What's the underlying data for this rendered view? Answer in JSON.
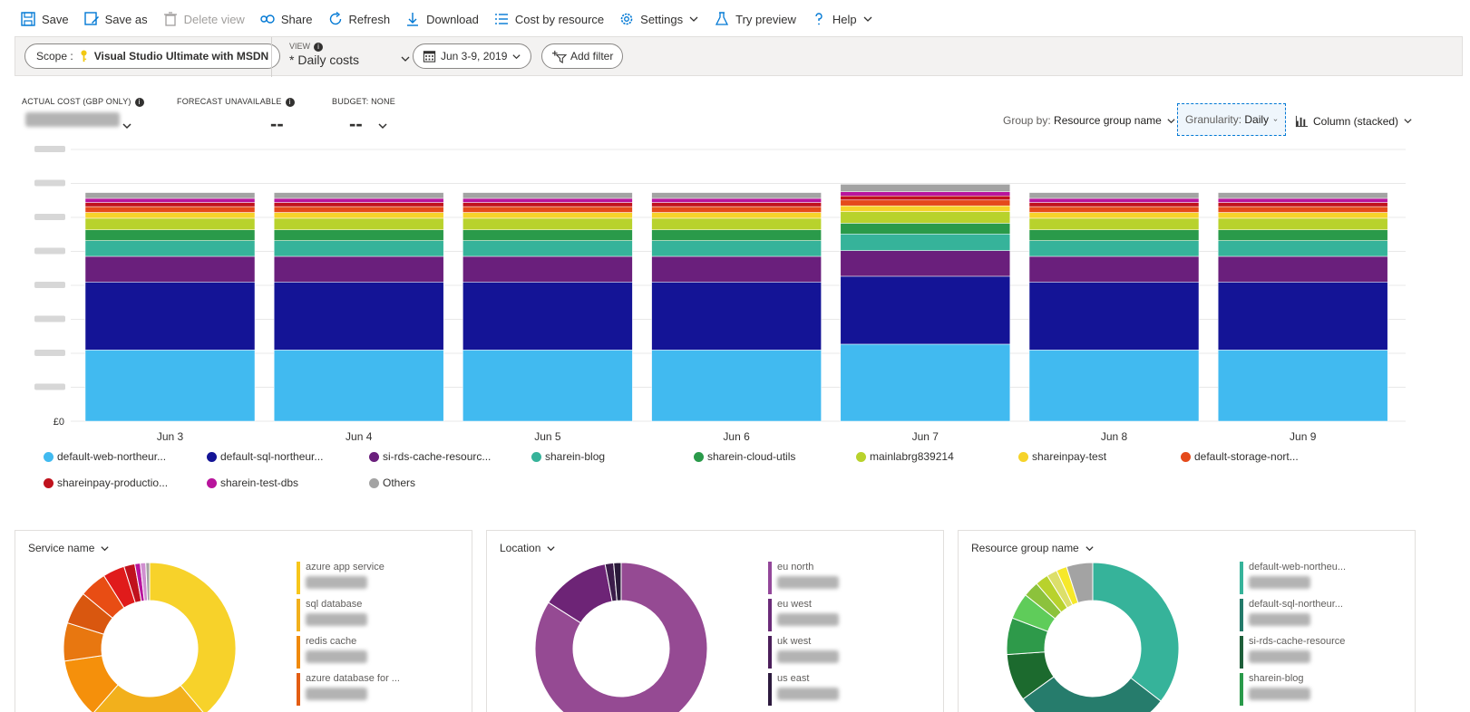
{
  "toolbar": {
    "save": "Save",
    "save_as": "Save as",
    "delete_view": "Delete view",
    "share": "Share",
    "refresh": "Refresh",
    "download": "Download",
    "cost_by_resource": "Cost by resource",
    "settings": "Settings",
    "try_preview": "Try preview",
    "help": "Help"
  },
  "filters": {
    "scope_label": "Scope :",
    "scope_value": "Visual Studio Ultimate with MSDN",
    "view_label": "VIEW",
    "view_value": "* Daily costs",
    "date_range": "Jun 3-9, 2019",
    "add_filter": "Add filter"
  },
  "kpis": {
    "actual_cost_label": "ACTUAL COST (GBP ONLY)",
    "forecast_label": "FORECAST UNAVAILABLE",
    "forecast_value": "--",
    "budget_label": "BUDGET: NONE",
    "budget_value": "--"
  },
  "controls": {
    "group_by_label": "Group by:",
    "group_by_value": "Resource group name",
    "granularity_label": "Granularity:",
    "granularity_value": "Daily",
    "chart_type": "Column (stacked)"
  },
  "colors": {
    "default-web-northeur": "#41baf0",
    "default-sql-northeur": "#141496",
    "si-rds-cache-resource": "#6a1f7c",
    "sharein-blog": "#36b39a",
    "sharein-cloud-utils": "#2a9a4a",
    "mainlabrg839214": "#b8d22c",
    "shareinpay-test": "#f6d32a",
    "default-storage-nort": "#e54a1b",
    "shareinpay-production": "#c0121d",
    "sharein-test-dbs": "#b8149c",
    "Others": "#a3a3a3"
  },
  "chart_data": {
    "type": "bar",
    "stacked": true,
    "categories": [
      "Jun 3",
      "Jun 4",
      "Jun 5",
      "Jun 6",
      "Jun 7",
      "Jun 8",
      "Jun 9"
    ],
    "y_tick_labels": [
      "£0"
    ],
    "ylim": [
      0,
      16.4
    ],
    "grid": true,
    "legend_placement": "bottom",
    "series": [
      {
        "name": "default-web-northeur...",
        "values": [
          4.3,
          4.3,
          4.3,
          4.3,
          4.65,
          4.3,
          4.3
        ]
      },
      {
        "name": "default-sql-northeur...",
        "values": [
          4.1,
          4.1,
          4.1,
          4.1,
          4.1,
          4.1,
          4.1
        ]
      },
      {
        "name": "si-rds-cache-resourc...",
        "values": [
          1.55,
          1.55,
          1.55,
          1.55,
          1.55,
          1.55,
          1.55
        ]
      },
      {
        "name": "sharein-blog",
        "values": [
          0.95,
          0.95,
          0.95,
          0.95,
          1.0,
          0.95,
          0.95
        ]
      },
      {
        "name": "sharein-cloud-utils",
        "values": [
          0.65,
          0.65,
          0.65,
          0.65,
          0.65,
          0.65,
          0.65
        ]
      },
      {
        "name": "mainlabrg839214",
        "values": [
          0.7,
          0.7,
          0.7,
          0.7,
          0.7,
          0.7,
          0.7
        ]
      },
      {
        "name": "shareinpay-test",
        "values": [
          0.35,
          0.35,
          0.35,
          0.35,
          0.35,
          0.35,
          0.35
        ]
      },
      {
        "name": "default-storage-nort...",
        "values": [
          0.35,
          0.35,
          0.35,
          0.35,
          0.35,
          0.35,
          0.35
        ]
      },
      {
        "name": "shareinpay-productio...",
        "values": [
          0.25,
          0.25,
          0.25,
          0.25,
          0.25,
          0.25,
          0.25
        ]
      },
      {
        "name": "sharein-test-dbs",
        "values": [
          0.25,
          0.25,
          0.25,
          0.25,
          0.25,
          0.25,
          0.25
        ]
      },
      {
        "name": "Others",
        "values": [
          0.35,
          0.35,
          0.35,
          0.35,
          0.45,
          0.35,
          0.35
        ]
      }
    ]
  },
  "panels": [
    {
      "title": "Service name",
      "items": [
        {
          "name": "azure app service",
          "color": "#f7c61b"
        },
        {
          "name": "sql database",
          "color": "#f2b01c"
        },
        {
          "name": "redis cache",
          "color": "#f08a0b"
        },
        {
          "name": "azure database for ...",
          "color": "#e35d13"
        }
      ],
      "donut": [
        {
          "value": 38,
          "color": "#f7d22a"
        },
        {
          "value": 22,
          "color": "#f2b01c"
        },
        {
          "value": 11,
          "color": "#f5900b"
        },
        {
          "value": 7,
          "color": "#e87710"
        },
        {
          "value": 6,
          "color": "#d9570f"
        },
        {
          "value": 5,
          "color": "#e84d14"
        },
        {
          "value": 4,
          "color": "#e01b1b"
        },
        {
          "value": 2,
          "color": "#c0121d"
        },
        {
          "value": 1,
          "color": "#b8149c"
        },
        {
          "value": 1,
          "color": "#d08fd0"
        },
        {
          "value": 0.7,
          "color": "#a3a3a3"
        }
      ]
    },
    {
      "title": "Location",
      "items": [
        {
          "name": "eu north",
          "color": "#93479a"
        },
        {
          "name": "eu west",
          "color": "#6b2b79"
        },
        {
          "name": "uk west",
          "color": "#4b1e5a"
        },
        {
          "name": "us east",
          "color": "#2d1a3e"
        }
      ],
      "donut": [
        {
          "value": 84,
          "color": "#954a93"
        },
        {
          "value": 13,
          "color": "#6d2476"
        },
        {
          "value": 1.6,
          "color": "#3b1c4a"
        },
        {
          "value": 1.4,
          "color": "#2a1a3a"
        }
      ]
    },
    {
      "title": "Resource group name",
      "items": [
        {
          "name": "default-web-northeu...",
          "color": "#36b39a"
        },
        {
          "name": "default-sql-northeur...",
          "color": "#247a6a"
        },
        {
          "name": "si-rds-cache-resource",
          "color": "#1e5f3a"
        },
        {
          "name": "sharein-blog",
          "color": "#2a9a4a"
        }
      ],
      "donut": [
        {
          "value": 36,
          "color": "#36b39a"
        },
        {
          "value": 30,
          "color": "#267c6c"
        },
        {
          "value": 9,
          "color": "#1c6a2e"
        },
        {
          "value": 7,
          "color": "#2e9a4a"
        },
        {
          "value": 5,
          "color": "#5fcc5a"
        },
        {
          "value": 3,
          "color": "#8cc23c"
        },
        {
          "value": 2.5,
          "color": "#b8d22c"
        },
        {
          "value": 2,
          "color": "#dcdf6a"
        },
        {
          "value": 2,
          "color": "#f6e82a"
        },
        {
          "value": 5,
          "color": "#a3a3a3"
        }
      ]
    }
  ]
}
